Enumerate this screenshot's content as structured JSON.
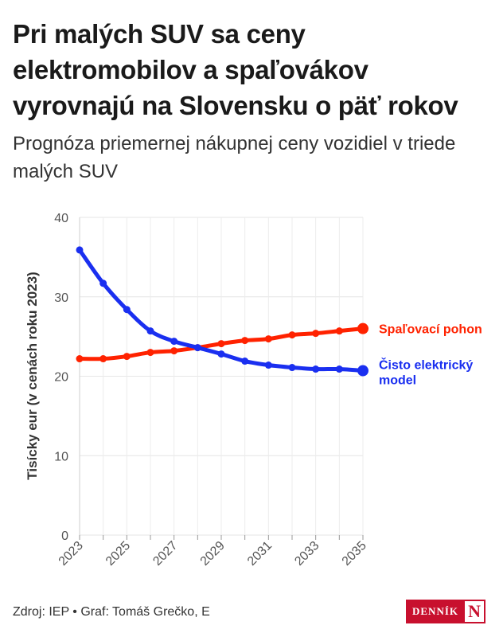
{
  "header": {
    "title": "Pri malých SUV sa ceny elektromobilov a spaľovákov vyrovnajú na Slovensku o päť rokov",
    "subtitle": "Prognóza priemernej nákupnej ceny vozidiel v triede malých SUV"
  },
  "footer": {
    "source": "Zdroj: IEP • Graf: Tomáš Grečko, E",
    "logo_text": "DENNÍK",
    "logo_mark": "N"
  },
  "chart_data": {
    "type": "line",
    "title": "Pri malých SUV sa ceny elektromobilov a spaľovákov vyrovnajú na Slovensku o päť rokov",
    "subtitle": "Prognóza priemernej nákupnej ceny vozidiel v triede malých SUV",
    "xlabel": "",
    "ylabel": "Tisícky eur (v cenách roku 2023)",
    "ylim": [
      0,
      40
    ],
    "yticks": [
      0,
      10,
      20,
      30,
      40
    ],
    "xlim": [
      2023,
      2035
    ],
    "xticks": [
      "2023",
      "2025",
      "2027",
      "2029",
      "2031",
      "2033",
      "2035"
    ],
    "x": [
      2023,
      2024,
      2025,
      2026,
      2027,
      2028,
      2029,
      2030,
      2031,
      2032,
      2033,
      2034,
      2035
    ],
    "grid": true,
    "legend": "end-of-line labels",
    "series": [
      {
        "name": "Spaľovací pohon",
        "color": "#ff2200",
        "values": [
          22.2,
          22.2,
          22.5,
          23.0,
          23.2,
          23.6,
          24.1,
          24.5,
          24.7,
          25.2,
          25.4,
          25.7,
          26.0
        ]
      },
      {
        "name": "Čisto elektrický model",
        "color": "#1a2ff0",
        "label_lines": [
          "Čisto elektrický",
          "model"
        ],
        "values": [
          35.9,
          31.7,
          28.4,
          25.7,
          24.4,
          23.6,
          22.8,
          21.9,
          21.4,
          21.1,
          20.9,
          20.9,
          20.7
        ]
      }
    ]
  }
}
